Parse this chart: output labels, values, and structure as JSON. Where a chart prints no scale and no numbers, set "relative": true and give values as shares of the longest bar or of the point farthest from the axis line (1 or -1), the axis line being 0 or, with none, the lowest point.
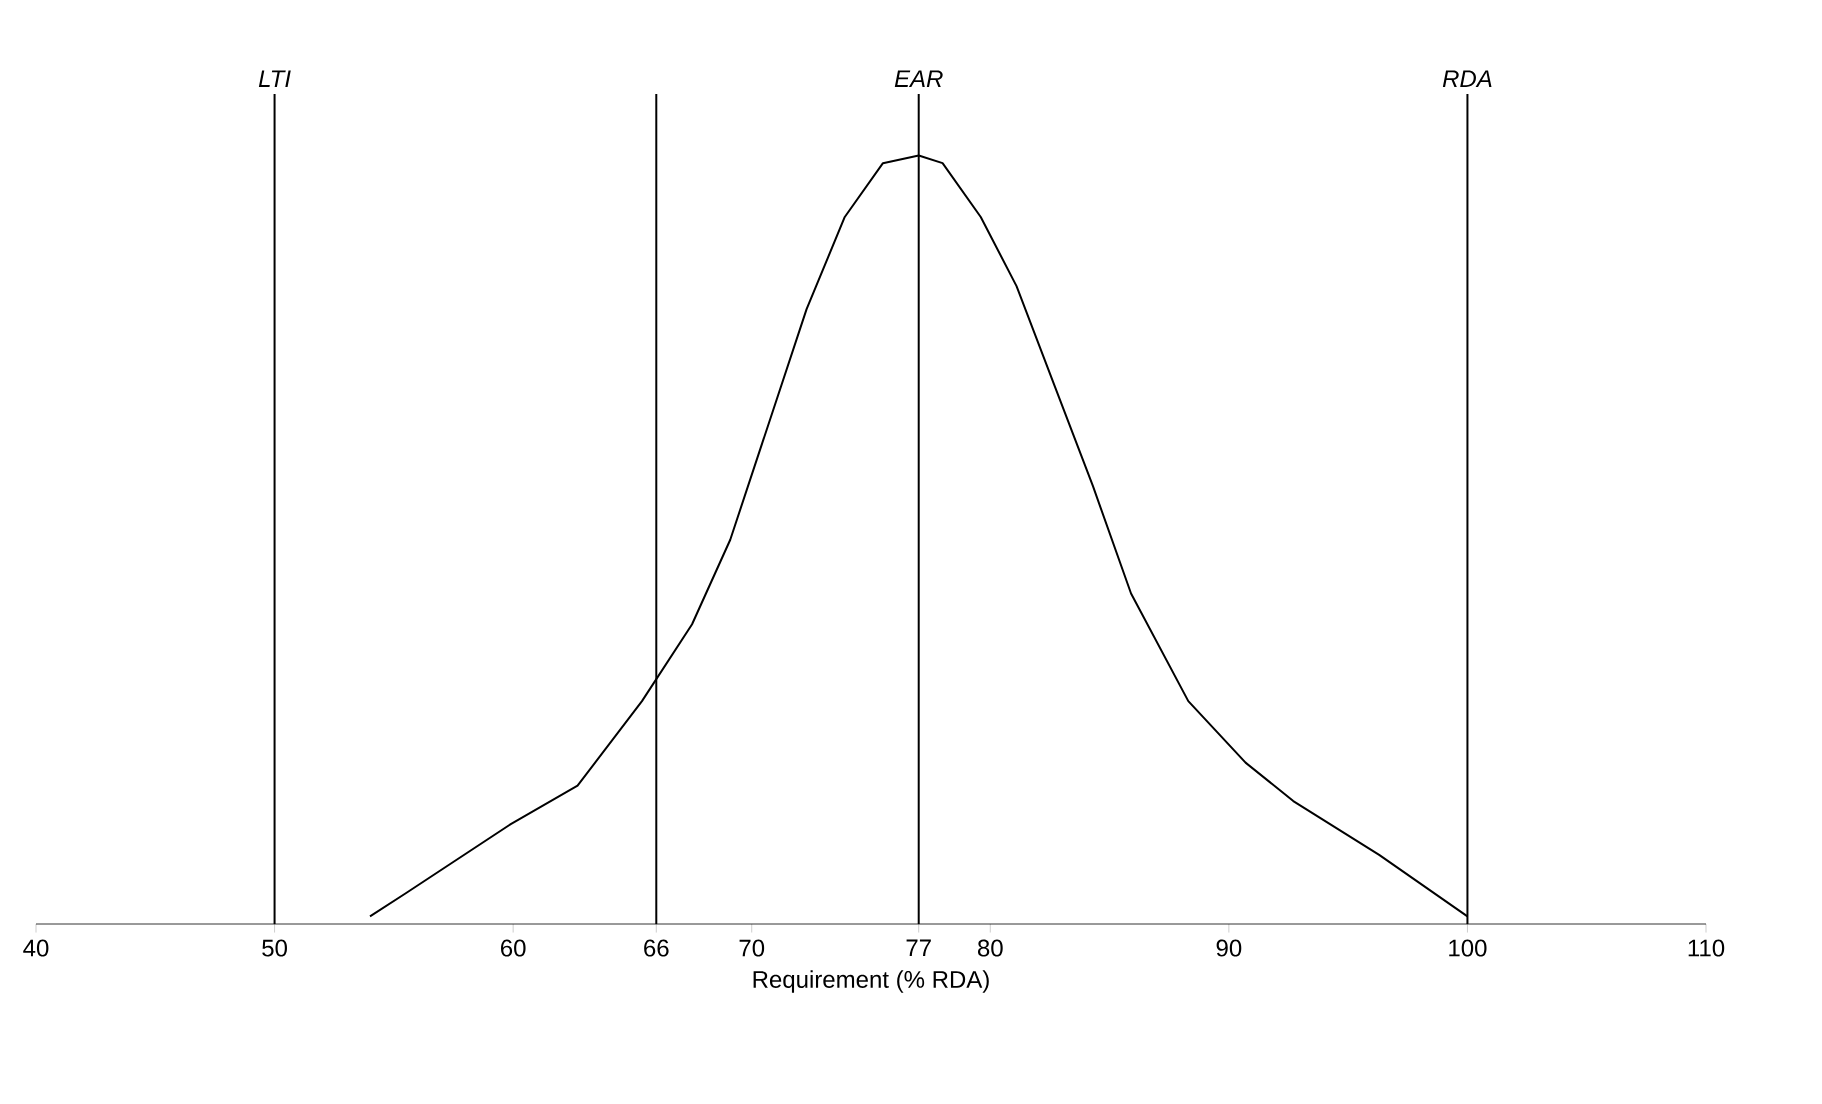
{
  "chart_data": {
    "type": "line",
    "relative": true,
    "xlabel": "Requirement (% RDA)",
    "xlim": [
      40,
      110
    ],
    "xticks": [
      40,
      50,
      60,
      66,
      70,
      77,
      80,
      90,
      100,
      110
    ],
    "x": [
      54,
      55.5,
      59.9,
      62.7,
      65.4,
      67.5,
      69.1,
      70.7,
      72.3,
      73.9,
      75.5,
      77,
      78,
      79.6,
      81.1,
      82.7,
      84.3,
      85.9,
      88.3,
      90.7,
      92.7,
      96.3,
      100
    ],
    "series": [
      {
        "color": "#000000",
        "values": [
          0.01,
          0.04,
          0.13,
          0.18,
          0.29,
          0.39,
          0.5,
          0.65,
          0.8,
          0.92,
          0.99,
          1,
          0.99,
          0.92,
          0.83,
          0.7,
          0.57,
          0.43,
          0.29,
          0.21,
          0.16,
          0.09,
          0.01
        ]
      }
    ],
    "ref_lines": [
      {
        "axis": "x",
        "value": 50,
        "label": "LTI"
      },
      {
        "axis": "x",
        "value": 66
      },
      {
        "axis": "x",
        "value": 77,
        "label": "EAR"
      },
      {
        "axis": "x",
        "value": 100,
        "label": "RDA"
      }
    ],
    "grid": false,
    "marker": "none",
    "line_style": "solid"
  }
}
